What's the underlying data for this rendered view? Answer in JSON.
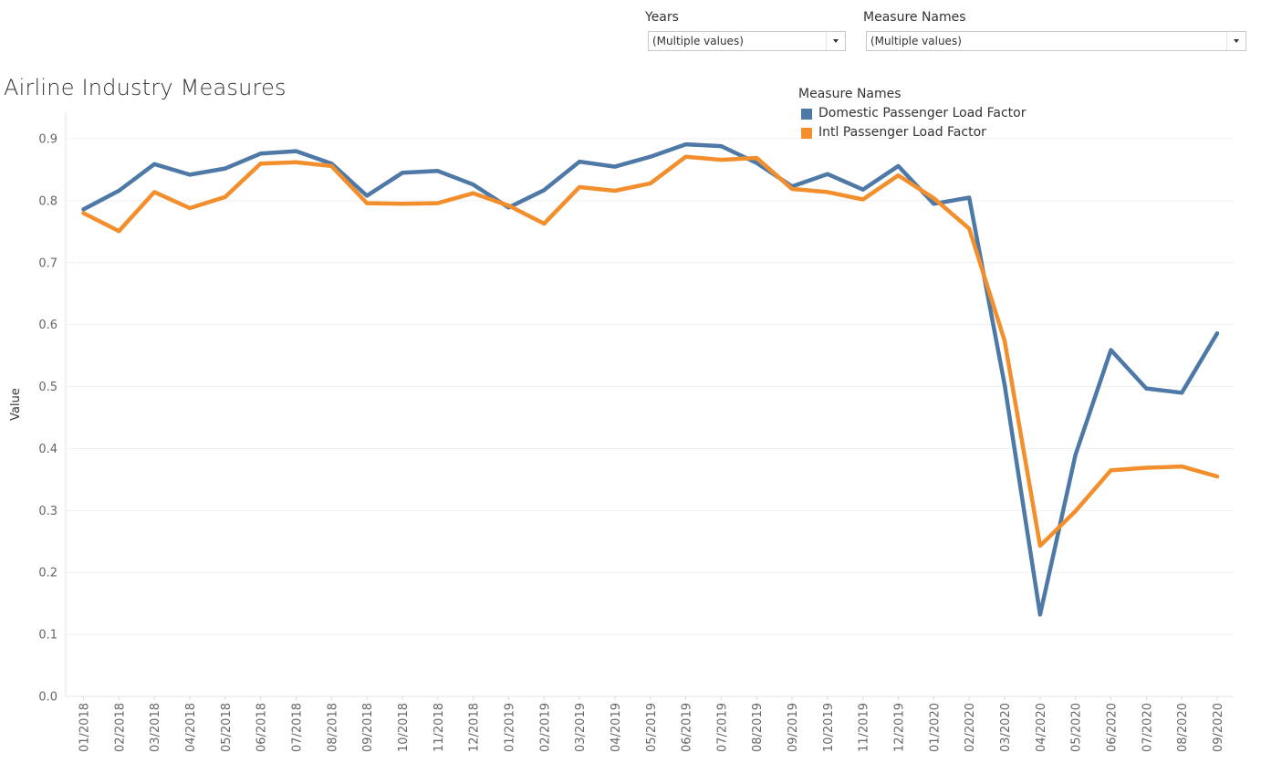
{
  "filters": {
    "years": {
      "label": "Years",
      "value": "(Multiple values)"
    },
    "measure_names": {
      "label": "Measure Names",
      "value": "(Multiple values)"
    }
  },
  "legend": {
    "title": "Measure Names",
    "items": [
      {
        "label": "Domestic Passenger Load Factor",
        "color": "#4e79a7"
      },
      {
        "label": "Intl Passenger Load Factor",
        "color": "#f28e2b"
      }
    ]
  },
  "chart_data": {
    "type": "line",
    "title": "Airline Industry Measures",
    "xlabel": "",
    "ylabel": "Value",
    "ylim": [
      0.0,
      0.9
    ],
    "yticks": [
      "0.0",
      "0.1",
      "0.2",
      "0.3",
      "0.4",
      "0.5",
      "0.6",
      "0.7",
      "0.8",
      "0.9"
    ],
    "grid": true,
    "legend_position": "top-right",
    "categories": [
      "01/2018",
      "02/2018",
      "03/2018",
      "04/2018",
      "05/2018",
      "06/2018",
      "07/2018",
      "08/2018",
      "09/2018",
      "10/2018",
      "11/2018",
      "12/2018",
      "01/2019",
      "02/2019",
      "03/2019",
      "04/2019",
      "05/2019",
      "06/2019",
      "07/2019",
      "08/2019",
      "09/2019",
      "10/2019",
      "11/2019",
      "12/2019",
      "01/2020",
      "02/2020",
      "03/2020",
      "04/2020",
      "05/2020",
      "06/2020",
      "07/2020",
      "08/2020",
      "09/2020"
    ],
    "series": [
      {
        "name": "Domestic Passenger Load Factor",
        "color": "#4e79a7",
        "values": [
          0.786,
          0.816,
          0.859,
          0.842,
          0.852,
          0.876,
          0.88,
          0.86,
          0.808,
          0.845,
          0.848,
          0.826,
          0.789,
          0.817,
          0.863,
          0.855,
          0.871,
          0.891,
          0.888,
          0.861,
          0.823,
          0.843,
          0.818,
          0.856,
          0.795,
          0.805,
          0.503,
          0.132,
          0.39,
          0.559,
          0.497,
          0.49,
          0.586
        ]
      },
      {
        "name": "Intl Passenger Load Factor",
        "color": "#f28e2b",
        "values": [
          0.78,
          0.751,
          0.814,
          0.788,
          0.806,
          0.86,
          0.862,
          0.856,
          0.796,
          0.795,
          0.796,
          0.812,
          0.792,
          0.763,
          0.822,
          0.816,
          0.828,
          0.871,
          0.866,
          0.869,
          0.819,
          0.814,
          0.802,
          0.841,
          0.804,
          0.755,
          0.574,
          0.243,
          0.299,
          0.365,
          0.369,
          0.371,
          0.355
        ]
      }
    ]
  }
}
